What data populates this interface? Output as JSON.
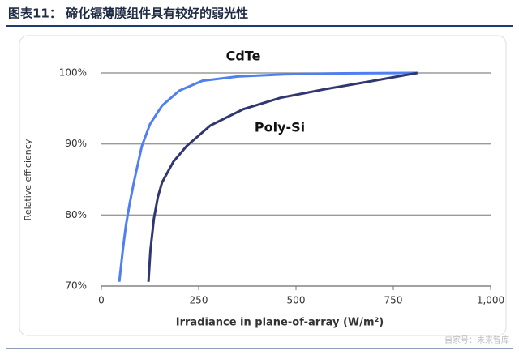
{
  "chart_data": {
    "type": "line",
    "title": "图表11： 碲化镉薄膜组件具有较好的弱光性",
    "xlabel": "Irradiance in plane-of-array (W/m²)",
    "ylabel": "Relative efficiency",
    "annotations": [
      "CdTe",
      "Poly-Si"
    ],
    "watermark": "自家号：未来智库",
    "series": [
      {
        "name": "CdTe",
        "color": "#4f7ff0",
        "x": [
          46,
          55,
          63,
          73,
          85,
          104,
          125,
          156,
          200,
          260,
          350,
          469,
          620,
          812
        ],
        "values": [
          70.6,
          75,
          78.5,
          81.7,
          85,
          89.7,
          92.8,
          95.4,
          97.5,
          98.9,
          99.5,
          99.8,
          99.95,
          100
        ]
      },
      {
        "name": "Poly-Si",
        "color": "#2f3670",
        "x": [
          121,
          126,
          135,
          145,
          156,
          185,
          219,
          280,
          365,
          460,
          573,
          700,
          812
        ],
        "values": [
          70.6,
          75,
          79.5,
          82.5,
          84.6,
          87.5,
          89.7,
          92.6,
          94.9,
          96.5,
          97.7,
          98.9,
          100
        ]
      }
    ],
    "xlim": [
      0,
      1000
    ],
    "xticks": [
      0,
      250,
      500,
      750,
      {
        "value": 1000,
        "label": "1,000"
      }
    ],
    "ylim": [
      70,
      100
    ],
    "yticks": [
      {
        "value": 70,
        "label": "70%"
      },
      {
        "value": 80,
        "label": "80%"
      },
      {
        "value": 90,
        "label": "90%"
      },
      {
        "value": 100,
        "label": "100%"
      }
    ],
    "grid": true
  }
}
